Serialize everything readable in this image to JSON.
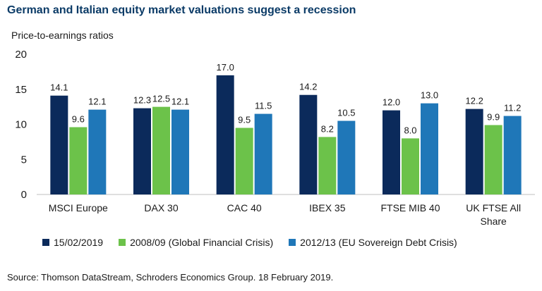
{
  "title": "German and Italian equity market valuations suggest a recession",
  "source": "Source: Thomson DataStream, Schroders Economics Group. 18 February 2019.",
  "chart_data": {
    "type": "bar",
    "ylabel": "Price-to-earnings ratios",
    "xlabel": "",
    "ylim": [
      0,
      20
    ],
    "yticks": [
      0,
      5,
      10,
      15,
      20
    ],
    "grid": false,
    "legend_position": "bottom",
    "categories": [
      "MSCI Europe",
      "DAX 30",
      "CAC 40",
      "IBEX 35",
      "FTSE MIB 40",
      "UK FTSE All Share"
    ],
    "category_lines": [
      [
        "MSCI Europe"
      ],
      [
        "DAX 30"
      ],
      [
        "CAC 40"
      ],
      [
        "IBEX 35"
      ],
      [
        "FTSE MIB 40"
      ],
      [
        "UK FTSE All",
        "Share"
      ]
    ],
    "series": [
      {
        "name": "15/02/2019",
        "color": "#0b2a5b",
        "values": [
          14.1,
          12.3,
          17.0,
          14.2,
          12.0,
          12.2
        ]
      },
      {
        "name": "2008/09 (Global Financial Crisis)",
        "color": "#6cc24a",
        "values": [
          9.6,
          12.5,
          9.5,
          8.2,
          8.0,
          9.9
        ]
      },
      {
        "name": "2012/13 (EU Sovereign Debt Crisis)",
        "color": "#1f77b8",
        "values": [
          12.1,
          12.1,
          11.5,
          10.5,
          13.0,
          11.2
        ]
      }
    ]
  }
}
